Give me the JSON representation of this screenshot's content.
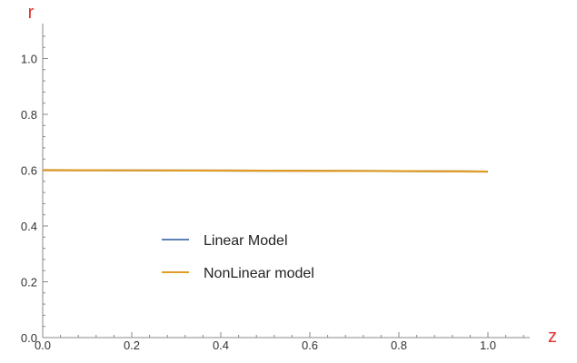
{
  "chart_data": {
    "type": "line",
    "title": "",
    "xlabel": "z",
    "ylabel": "r",
    "xlim": [
      0,
      1.13
    ],
    "ylim": [
      0,
      1.1
    ],
    "x_ticks": [
      0,
      0.2,
      0.4,
      0.6,
      0.8,
      1.0
    ],
    "x_tick_labels": [
      "0.0",
      "0.2",
      "0.4",
      "0.6",
      "0.8",
      "1.0"
    ],
    "y_ticks": [
      0,
      0.2,
      0.4,
      0.6,
      0.8,
      1.0
    ],
    "y_tick_labels": [
      "0.0",
      "0.2",
      "0.4",
      "0.6",
      "0.8",
      "1.0"
    ],
    "grid": false,
    "legend_position": "center-left",
    "series": [
      {
        "name": "Linear Model",
        "color": "#5e81b5",
        "x": [
          0,
          0.25,
          0.5,
          0.75,
          1.0
        ],
        "y": [
          0.6,
          0.599,
          0.598,
          0.597,
          0.595
        ]
      },
      {
        "name": "NonLinear model",
        "color": "#e19c24",
        "x": [
          0,
          0.25,
          0.5,
          0.75,
          1.0
        ],
        "y": [
          0.6,
          0.599,
          0.598,
          0.597,
          0.595
        ]
      }
    ]
  }
}
